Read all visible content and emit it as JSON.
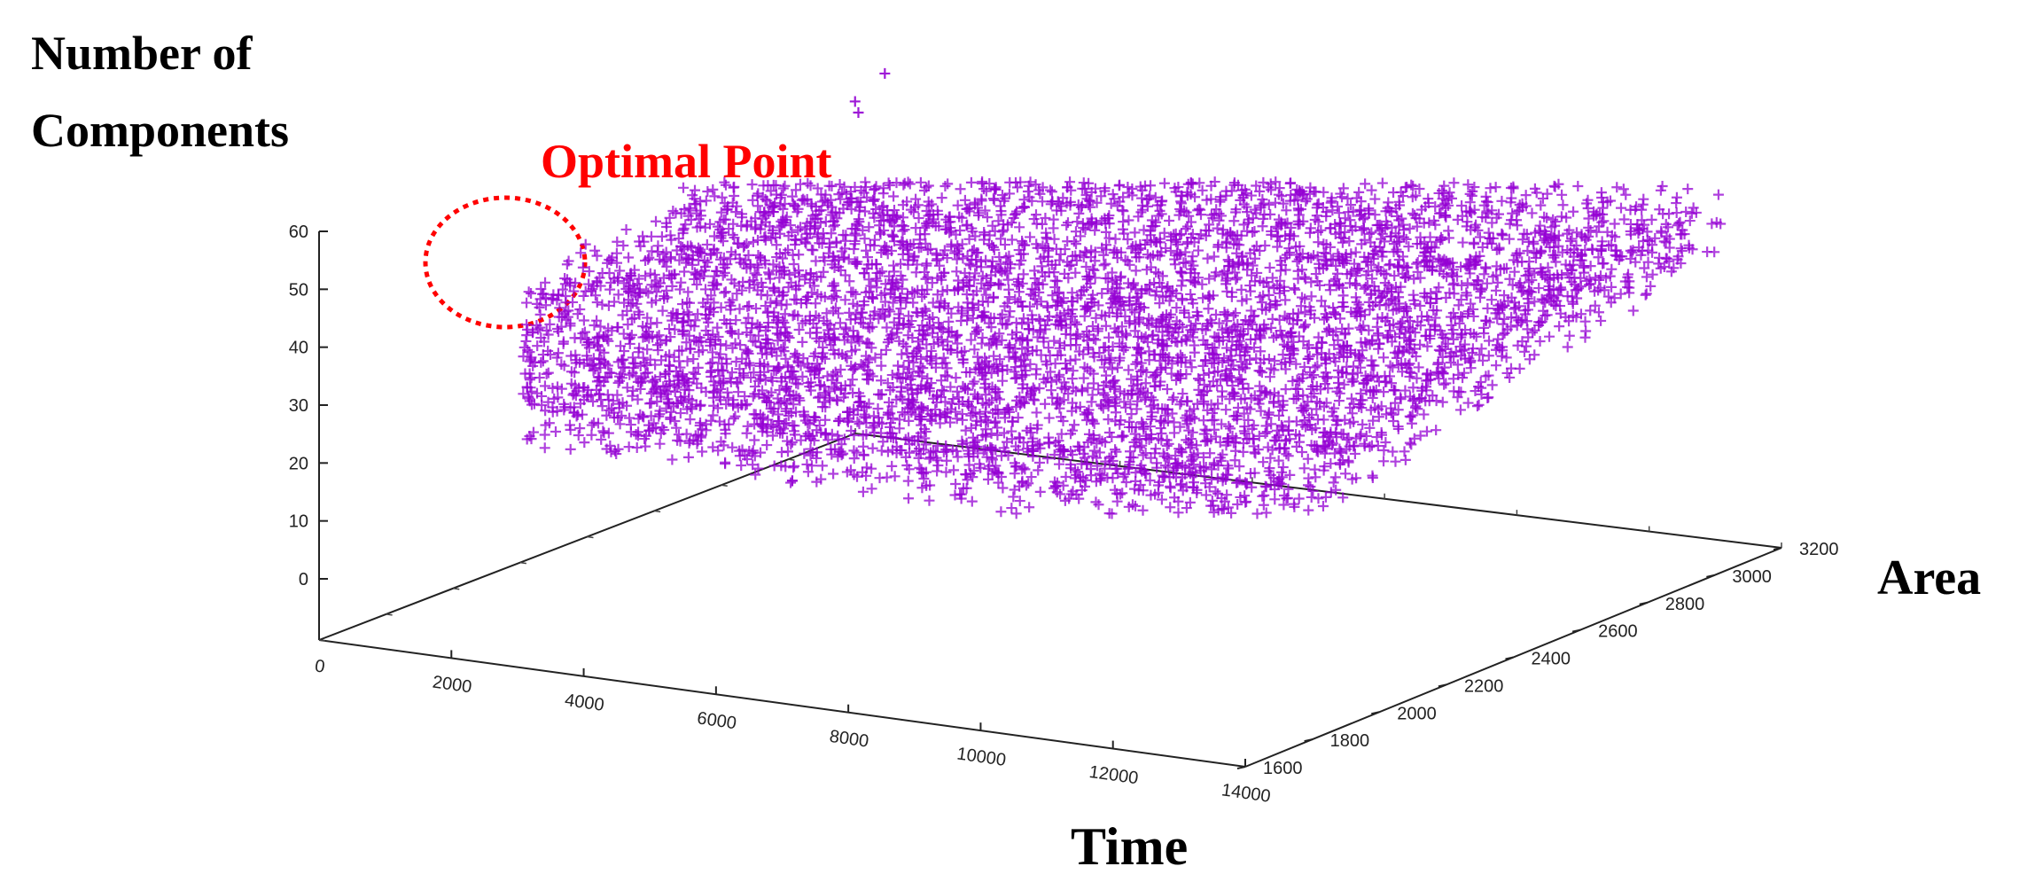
{
  "chart_data": {
    "type": "scatter",
    "projection": "3d",
    "marker": "+",
    "marker_color": "#9400D3",
    "annotation_color": "#ff0000",
    "zlabel_line1": "Number of",
    "zlabel_line2": "Components",
    "xlabel": "Time",
    "ylabel": "Area",
    "annotation": "Optimal Point",
    "xlim": [
      0,
      14000
    ],
    "ylim": [
      1600,
      3200
    ],
    "zlim": [
      0,
      60
    ],
    "x_ticks": [
      "0",
      "2000",
      "4000",
      "6000",
      "8000",
      "10000",
      "12000",
      "14000"
    ],
    "y_ticks": [
      "1600",
      "1800",
      "2000",
      "2200",
      "2400",
      "2600",
      "2800",
      "3000",
      "3200"
    ],
    "z_ticks": [
      "0",
      "10",
      "20",
      "30",
      "40",
      "50",
      "60"
    ],
    "clusters": {
      "count": 30,
      "time_start": 600,
      "time_end": 13600,
      "area_range": [
        1700,
        3100
      ],
      "components_range": [
        20,
        58
      ],
      "outliers": [
        {
          "time": 250,
          "area": 3150,
          "components": 50
        },
        {
          "time": 300,
          "area": 3150,
          "components": 48
        },
        {
          "time": 700,
          "area": 3150,
          "components": 56
        }
      ]
    }
  }
}
